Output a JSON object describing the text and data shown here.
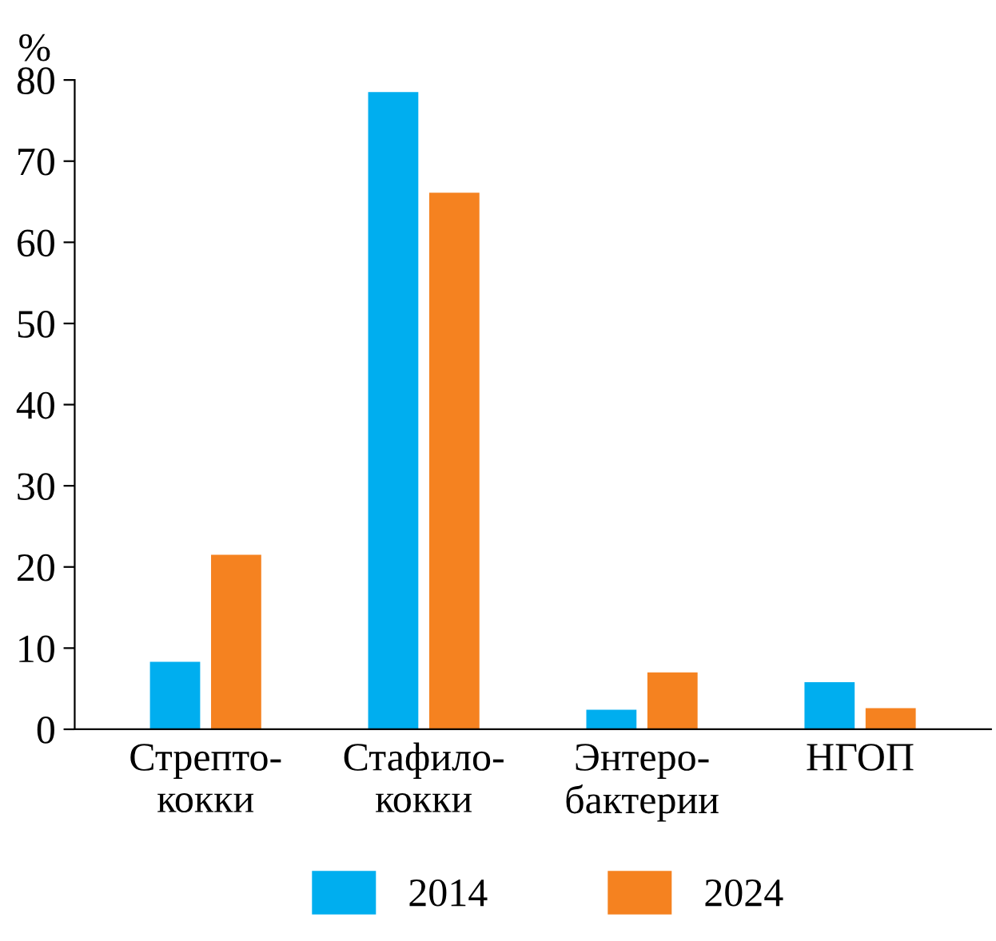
{
  "chart_data": {
    "type": "bar",
    "ylabel": "%",
    "categories": [
      "Стрепто-\nкокки",
      "Стафило-\nкокки",
      "Энтеро-\nбактерии",
      "НГОП"
    ],
    "series": [
      {
        "name": "2014",
        "color": "#00aeef",
        "values": [
          8.3,
          78.5,
          2.4,
          5.8
        ]
      },
      {
        "name": "2024",
        "color": "#f58220",
        "values": [
          21.5,
          66.1,
          7.0,
          2.6
        ]
      }
    ],
    "ylim": [
      0,
      80
    ],
    "yticks": [
      0,
      10,
      20,
      30,
      40,
      50,
      60,
      70,
      80
    ],
    "grid": false,
    "legend": "bottom"
  }
}
